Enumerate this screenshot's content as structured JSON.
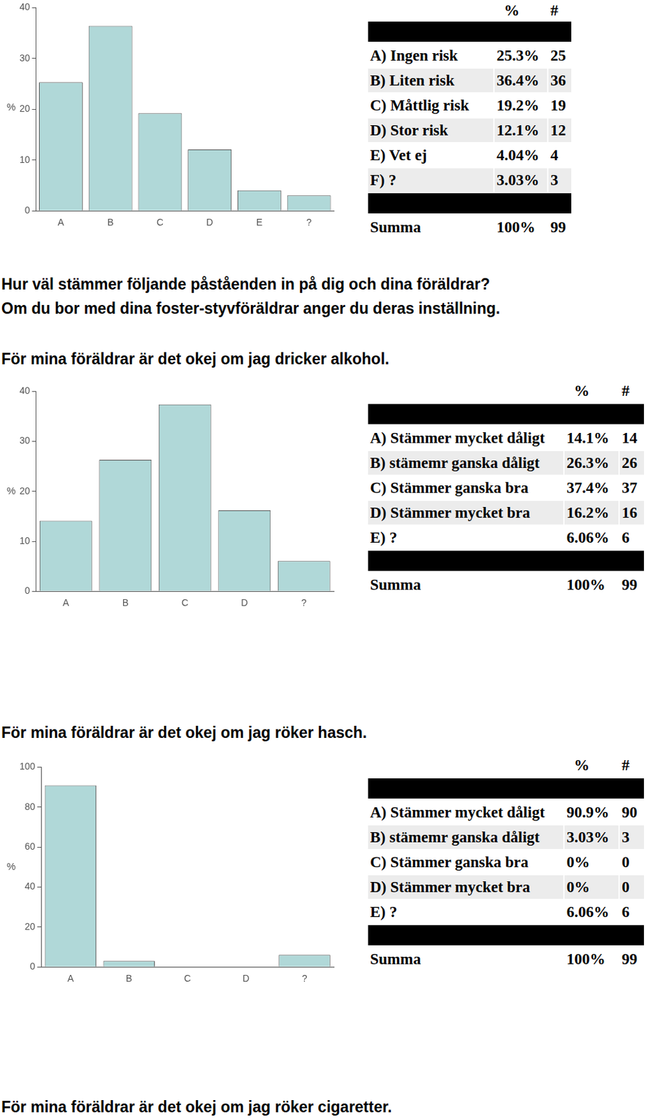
{
  "chart_data": [
    {
      "type": "bar",
      "categories": [
        "A",
        "B",
        "C",
        "D",
        "E",
        "?"
      ],
      "values": [
        25.3,
        36.4,
        19.2,
        12.1,
        4.04,
        3.03
      ],
      "color": "#b0d8d8",
      "ylabel": "%",
      "ylim": [
        0,
        40
      ],
      "yticks": [
        0,
        10,
        20,
        30,
        40
      ],
      "grid": false
    },
    {
      "type": "bar",
      "categories": [
        "A",
        "B",
        "C",
        "D",
        "?"
      ],
      "values": [
        14.1,
        26.3,
        37.4,
        16.2,
        6.06
      ],
      "color": "#b0d8d8",
      "ylabel": "%",
      "ylim": [
        0,
        40
      ],
      "yticks": [
        0,
        10,
        20,
        30,
        40
      ],
      "grid": false
    },
    {
      "type": "bar",
      "categories": [
        "A",
        "B",
        "C",
        "D",
        "?"
      ],
      "values": [
        90.9,
        3.03,
        0,
        0,
        6.06
      ],
      "color": "#b0d8d8",
      "ylabel": "%",
      "ylim": [
        0,
        100
      ],
      "yticks": [
        0,
        20,
        40,
        60,
        80,
        100
      ],
      "grid": false
    }
  ],
  "tables": [
    {
      "header": [
        "%",
        "#"
      ],
      "rows": [
        [
          "A) Ingen risk",
          "25.3%",
          "25"
        ],
        [
          "B) Liten risk",
          "36.4%",
          "36"
        ],
        [
          "C) Måttlig risk",
          "19.2%",
          "19"
        ],
        [
          "D) Stor risk",
          "12.1%",
          "12"
        ],
        [
          "E) Vet ej",
          "4.04%",
          "4"
        ],
        [
          "F) ?",
          "3.03%",
          "3"
        ]
      ],
      "total": [
        "Summa",
        "100%",
        "99"
      ]
    },
    {
      "header": [
        "%",
        "#"
      ],
      "rows": [
        [
          "A) Stämmer mycket dåligt",
          "14.1%",
          "14"
        ],
        [
          "B) stämemr ganska dåligt",
          "26.3%",
          "26"
        ],
        [
          "C) Stämmer ganska bra",
          "37.4%",
          "37"
        ],
        [
          "D) Stämmer mycket bra",
          "16.2%",
          "16"
        ],
        [
          "E) ?",
          "6.06%",
          "6"
        ]
      ],
      "total": [
        "Summa",
        "100%",
        "99"
      ]
    },
    {
      "header": [
        "%",
        "#"
      ],
      "rows": [
        [
          "A) Stämmer mycket dåligt",
          "90.9%",
          "90"
        ],
        [
          "B) stämemr ganska dåligt",
          "3.03%",
          "3"
        ],
        [
          "C) Stämmer ganska bra",
          "0%",
          "0"
        ],
        [
          "D) Stämmer mycket bra",
          "0%",
          "0"
        ],
        [
          "E) ?",
          "6.06%",
          "6"
        ]
      ],
      "total": [
        "Summa",
        "100%",
        "99"
      ]
    }
  ],
  "texts": {
    "intro": [
      "Hur väl stämmer följande påståenden in på dig och dina föräldrar?",
      "Om du bor med dina foster-styvföräldrar anger du deras inställning."
    ],
    "questions": [
      "För mina föräldrar är det okej om jag dricker alkohol.",
      "För mina föräldrar är det okej om jag röker hasch.",
      "För mina föräldrar är det okej om jag röker cigaretter."
    ]
  }
}
